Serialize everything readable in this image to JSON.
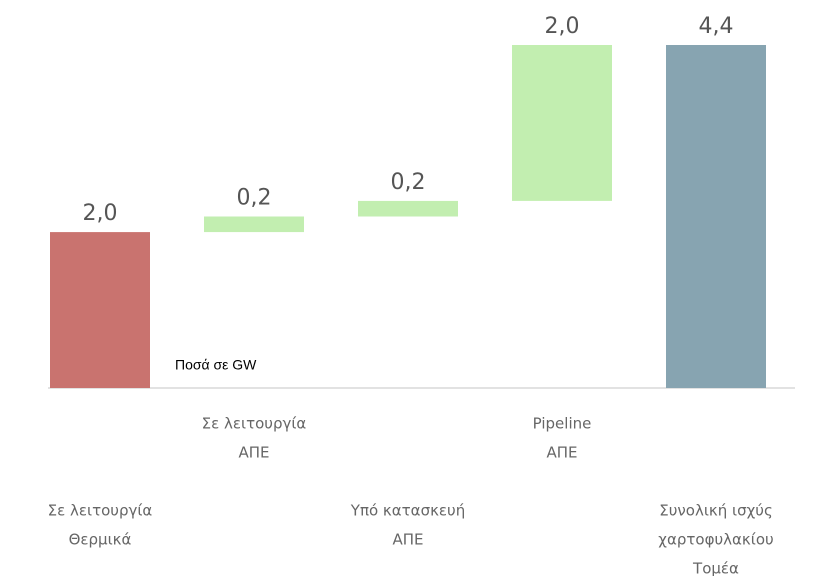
{
  "chart_data": {
    "type": "waterfall",
    "categories": [
      [
        "Σε λειτουργία",
        "Θερμικά"
      ],
      [
        "Σε λειτουργία",
        "ΑΠΕ"
      ],
      [
        "Υπό κατασκευή",
        "ΑΠΕ"
      ],
      [
        "Pipeline",
        "ΑΠΕ"
      ],
      [
        "Συνολική ισχύς",
        "χαρτοφυλακίου",
        "Τομέα"
      ]
    ],
    "values": [
      2.0,
      0.2,
      0.2,
      2.0,
      4.4
    ],
    "value_labels": [
      "2,0",
      "0,2",
      "0,2",
      "2,0",
      "4,4"
    ],
    "kinds": [
      "total",
      "increase",
      "increase",
      "increase",
      "total"
    ],
    "colors": [
      "#c9736f",
      "#c2eeb0",
      "#c2eeb0",
      "#c2eeb0",
      "#87a4b1"
    ],
    "annotation": "Ποσά σε GW"
  }
}
